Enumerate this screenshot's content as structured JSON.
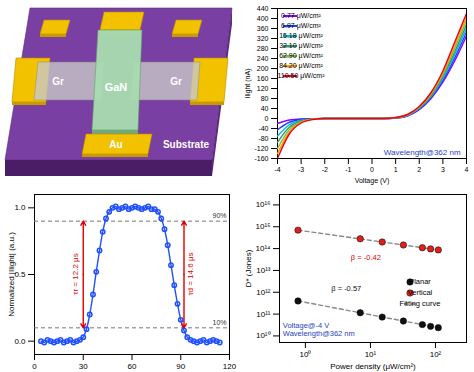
{
  "diagram": {
    "electrode_left": "Gr",
    "electrode_right": "Gr",
    "channel": "GaN",
    "electrode_bottom": "Au",
    "substrate": "Substrate"
  },
  "chart_data": [
    {
      "type": "line",
      "x_label": "Voltage (V)",
      "y_label": "Ilight (nA)",
      "x": [
        -4,
        -3.5,
        -3,
        -2.5,
        -2,
        -1,
        0,
        0.5,
        1,
        1.5,
        2,
        2.5,
        3,
        3.5,
        4
      ],
      "series": [
        {
          "name": "0.77 μW/cm²",
          "color": "#8b00ff",
          "values": [
            -20,
            -6,
            -2,
            -1,
            0,
            0,
            0,
            0,
            2,
            10,
            35,
            80,
            145,
            230,
            330
          ]
        },
        {
          "name": "6.97 μW/cm²",
          "color": "#1e3cff",
          "values": [
            -45,
            -15,
            -4,
            -1,
            0,
            0,
            0,
            0,
            2,
            11,
            37,
            84,
            152,
            242,
            345
          ]
        },
        {
          "name": "15.18 μW/cm²",
          "color": "#00b5e2",
          "values": [
            -70,
            -25,
            -7,
            -2,
            0,
            0,
            0,
            0,
            3,
            12,
            40,
            88,
            160,
            255,
            360
          ]
        },
        {
          "name": "32.10 μW/cm²",
          "color": "#2f9a6a",
          "values": [
            -95,
            -35,
            -10,
            -2,
            0,
            0,
            0,
            0,
            3,
            13,
            42,
            92,
            168,
            267,
            375
          ]
        },
        {
          "name": "62.90 μW/cm²",
          "color": "#7fbf3f",
          "values": [
            -120,
            -45,
            -13,
            -3,
            0,
            0,
            0,
            0,
            3,
            14,
            44,
            96,
            175,
            280,
            390
          ]
        },
        {
          "name": "84.20 μW/cm²",
          "color": "#ff9900",
          "values": [
            -140,
            -55,
            -15,
            -3,
            0,
            0,
            0,
            0,
            4,
            15,
            46,
            100,
            182,
            292,
            405
          ]
        },
        {
          "name": "110.50 μW/cm²",
          "color": "#e8001c",
          "values": [
            -160,
            -62,
            -18,
            -4,
            0,
            0,
            0,
            0,
            4,
            16,
            48,
            104,
            190,
            305,
            420
          ]
        }
      ],
      "xlim": [
        -4,
        4
      ],
      "xticks": [
        -4,
        -3,
        -2,
        -1,
        0,
        1,
        2,
        3,
        4
      ],
      "ylim": [
        -160,
        440
      ],
      "yticks": [
        -160,
        -120,
        -80,
        -40,
        0,
        40,
        80,
        120,
        160,
        200,
        240,
        280,
        320,
        360,
        400,
        440
      ],
      "legend": "top-left",
      "annotations": [
        {
          "text": "Wavelength@362 nm",
          "x": 0.5,
          "y": -135,
          "color": "#1f3fbf"
        }
      ]
    },
    {
      "type": "line",
      "marker": "circle",
      "y_label": "Normalized |Ilight| (a.u.)",
      "color": "#1f4fff",
      "x": [
        4,
        6,
        8,
        10,
        12,
        14,
        16,
        18,
        20,
        22,
        24,
        26,
        28,
        30,
        32,
        34,
        36,
        38,
        40,
        42,
        44,
        46,
        48,
        50,
        52,
        54,
        56,
        58,
        60,
        62,
        64,
        66,
        68,
        70,
        72,
        74,
        76,
        78,
        80,
        82,
        84,
        86,
        88,
        90,
        92,
        94,
        96,
        98,
        100,
        102,
        104,
        106,
        108,
        110,
        112,
        114
      ],
      "values": [
        0.0,
        -0.01,
        0.01,
        0.0,
        -0.01,
        0.0,
        0.01,
        -0.01,
        0.0,
        0.01,
        -0.01,
        0.0,
        0.01,
        0.03,
        0.09,
        0.2,
        0.35,
        0.52,
        0.68,
        0.82,
        0.92,
        0.97,
        1.0,
        1.01,
        0.99,
        1.0,
        1.01,
        0.99,
        1.0,
        1.01,
        1.0,
        0.99,
        1.0,
        1.01,
        0.99,
        0.99,
        0.97,
        0.92,
        0.84,
        0.72,
        0.57,
        0.42,
        0.28,
        0.16,
        0.08,
        0.03,
        0.01,
        0.0,
        -0.01,
        0.0,
        0.01,
        -0.01,
        0.0,
        0.01,
        0.0,
        -0.01
      ],
      "xlim": [
        0,
        120
      ],
      "xticks": [
        0,
        30,
        60,
        90,
        120
      ],
      "ylim": [
        -0.1,
        1.1
      ],
      "yticks": [
        {
          "value": 0,
          "label": "0.0"
        },
        {
          "value": 0.5,
          "label": "0.5"
        },
        {
          "value": 1,
          "label": "1.0"
        }
      ],
      "hlines": [
        {
          "value": 0.9,
          "label": "90%"
        },
        {
          "value": 0.1,
          "label": "10%"
        }
      ],
      "annotations": [
        {
          "text": "τr = 12.2 μs",
          "x": 30,
          "y": 0.5,
          "color": "#e00000"
        },
        {
          "text": "τd = 14.6 μs",
          "x": 92,
          "y": 0.5,
          "color": "#e00000"
        }
      ]
    },
    {
      "type": "scatter",
      "log": true,
      "x_label": "Power density (μW/cm²)",
      "y_label": "D* (Jones)",
      "series": [
        {
          "name": "Planar",
          "type": "scatter",
          "marker": "circle",
          "color": "#111111",
          "x": [
            0.77,
            6.97,
            15.18,
            32.1,
            62.9,
            84.2,
            110.5
          ],
          "values": [
            400000000000.0,
            115000000000.0,
            73000000000.0,
            48000000000.0,
            33000000000.0,
            27500000000.0,
            24000000000.0
          ]
        },
        {
          "name": "Vertical",
          "type": "scatter",
          "marker": "circle",
          "color": "#e0201b",
          "x": [
            0.77,
            6.97,
            15.18,
            32.1,
            62.9,
            84.2,
            110.5
          ],
          "values": [
            700000000000000.0,
            280000000000000.0,
            200000000000000.0,
            146000000000000.0,
            110000000000000.0,
            97000000000000.0,
            87000000000000.0
          ]
        },
        {
          "name": "Fitting curve",
          "type": "line",
          "line_style": "dashed",
          "color": "#888888",
          "x": [
            0.77,
            110.5
          ],
          "values": [
            400000000000.0,
            24000000000.0
          ]
        },
        {
          "name": "Fitting curve",
          "type": "line",
          "line_style": "dashed",
          "color": "#888888",
          "x": [
            0.77,
            110.5
          ],
          "values": [
            700000000000000.0,
            87000000000000.0
          ]
        }
      ],
      "xlim": [
        0.4,
        300
      ],
      "xticks": [
        {
          "value": 1,
          "label": "10⁰"
        },
        {
          "value": 10,
          "label": "10¹"
        },
        {
          "value": 100,
          "label": "10²"
        }
      ],
      "ylim": [
        5000000000.0,
        3e+16
      ],
      "yticks": [
        {
          "value": 10000000000.0,
          "label": "10¹⁰"
        },
        {
          "value": 100000000000.0,
          "label": "10¹¹"
        },
        {
          "value": 1000000000000.0,
          "label": "10¹²"
        },
        {
          "value": 10000000000000.0,
          "label": "10¹³"
        },
        {
          "value": 100000000000000.0,
          "label": "10¹⁴"
        },
        {
          "value": 1000000000000000.0,
          "label": "10¹⁵"
        },
        {
          "value": 1e+16,
          "label": "10¹⁶"
        }
      ],
      "legend": "right",
      "annotations": [
        {
          "text": "β = -0.42",
          "x": 5,
          "y": 30000000000000.0,
          "color": "#e00000"
        },
        {
          "text": "β = -0.57",
          "x": 2.5,
          "y": 1200000000000.0,
          "color": "#111111"
        },
        {
          "text": "Voltage@-4 V\nWavelength@362 nm",
          "x": 0.45,
          "y": 10000000000.0,
          "color": "#1f3fbf"
        }
      ]
    }
  ]
}
